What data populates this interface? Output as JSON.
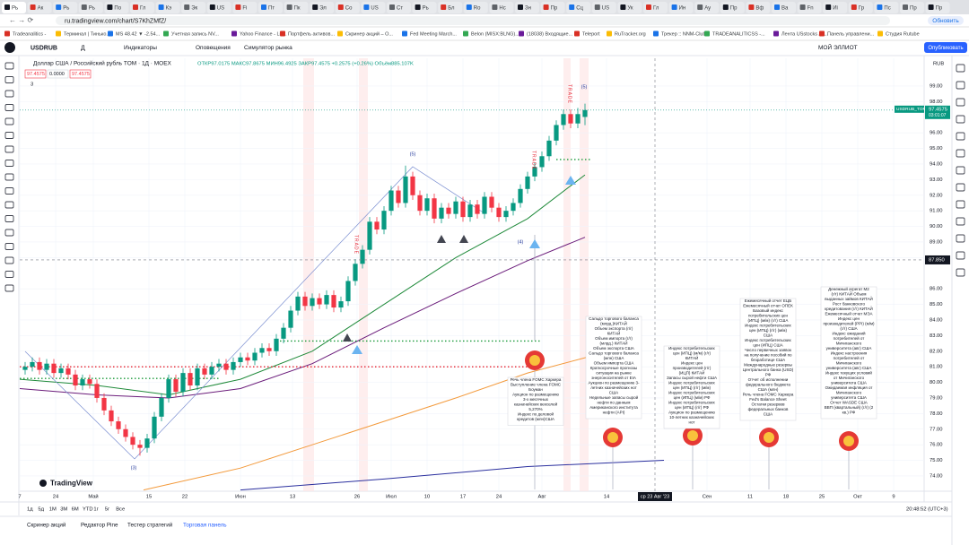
{
  "browser": {
    "tabs": [
      "Рь",
      "Ак",
      "Рь",
      "Рь",
      "По",
      "Гл",
      "Кэ",
      "Эк",
      "US",
      "Fi",
      "Пт",
      "Пк",
      "Эл",
      "Со",
      "US",
      "Ст",
      "Рь",
      "Бл",
      "Ro",
      "Нс",
      "Зн",
      "Пр",
      "Сц",
      "US",
      "Ук",
      "Гл",
      "Ин",
      "Ау",
      "Пр",
      "Вф",
      "Ва",
      "Fn",
      "Иі",
      "Гр",
      "Пс",
      "Пр",
      "Пр"
    ],
    "url": "ru.tradingview.com/chart/S7KhZMfZ/",
    "update_button": "Обновить",
    "bookmarks": [
      "Tradeanalitics -",
      "Терминал | Тинько...",
      "MS 48.42 ▼ -2.54...",
      "Учетная запись NV...",
      "Yahoo Finance - Liv...",
      "Портфель активов...",
      "Скринер акций – О...",
      "Fed Meeting March...",
      "Belon (MISX:BLNG)...",
      "(18038) Входящие...",
      "Teleport",
      "RuTracker.org",
      "Трекер :: NNM-Club",
      "TRADEANALITICSS -...",
      "Лента USstocks Ак...",
      "Панель управлени...",
      "Студия Rutube"
    ]
  },
  "toolbar": {
    "symbol": "USDRUB",
    "interval": "Д",
    "indicators": "Индикаторы",
    "alerts": "Оповещения",
    "replay": "Симулятор рынка",
    "layout_name": "МОЙ ЭЛЛИОТ",
    "publish": "Опубликовать"
  },
  "chart_data": {
    "type": "candlestick",
    "title": "Доллар США / Российский рубль TOM · 1Д · MOEX",
    "ohlc_text": "ОТКР97.0175 МАКС97.8675 МИН96.4925 ЗАКР97.4575 +0.2575 (+0.26%) Объём885.107K",
    "price_boxes": [
      "97.4575",
      "0.0000",
      "97.4575"
    ],
    "indicator_count": "3",
    "currency": "RUB",
    "up_color": "#089981",
    "down_color": "#f23645",
    "grid": true,
    "ylim": [
      73.02,
      100.78
    ],
    "yticks": [
      {
        "value": 74,
        "label": "74.00"
      },
      {
        "value": 75,
        "label": "75.00"
      },
      {
        "value": 76,
        "label": "76.00"
      },
      {
        "value": 77,
        "label": "77.00"
      },
      {
        "value": 78,
        "label": "78.00"
      },
      {
        "value": 79,
        "label": "79.00"
      },
      {
        "value": 80,
        "label": "80.00"
      },
      {
        "value": 81,
        "label": "81.00"
      },
      {
        "value": 82,
        "label": "82.00"
      },
      {
        "value": 83,
        "label": "83.00"
      },
      {
        "value": 84,
        "label": "84.00"
      },
      {
        "value": 85,
        "label": "85.00"
      },
      {
        "value": 86,
        "label": "86.00"
      },
      {
        "value": 88,
        "label": "88.00"
      },
      {
        "value": 89,
        "label": "89.00"
      },
      {
        "value": 90,
        "label": "90.00"
      },
      {
        "value": 91,
        "label": "91.00"
      },
      {
        "value": 92,
        "label": "92.00"
      },
      {
        "value": 93,
        "label": "93.00"
      },
      {
        "value": 94,
        "label": "94.00"
      },
      {
        "value": 95,
        "label": "95.00"
      },
      {
        "value": 96,
        "label": "96.00"
      },
      {
        "value": 98,
        "label": "98.00"
      },
      {
        "value": 99,
        "label": "99.00"
      }
    ],
    "xlim": [
      -0.75,
      125.25
    ],
    "xticks": [
      {
        "value": -0.75,
        "label": "7"
      },
      {
        "value": 4.25,
        "label": "24"
      },
      {
        "value": 9.5,
        "label": "Май"
      },
      {
        "value": 17.25,
        "label": "15"
      },
      {
        "value": 22.25,
        "label": "22"
      },
      {
        "value": 30,
        "label": "Июн"
      },
      {
        "value": 37.25,
        "label": "13"
      },
      {
        "value": 46.25,
        "label": "26"
      },
      {
        "value": 51,
        "label": "Июл"
      },
      {
        "value": 56,
        "label": "10"
      },
      {
        "value": 61,
        "label": "17"
      },
      {
        "value": 66,
        "label": "24"
      },
      {
        "value": 72,
        "label": "Авг"
      },
      {
        "value": 81,
        "label": "14"
      },
      {
        "value": 95,
        "label": "Сен"
      },
      {
        "value": 101,
        "label": "11"
      },
      {
        "value": 106,
        "label": "18"
      },
      {
        "value": 111,
        "label": "25"
      },
      {
        "value": 116,
        "label": "Окт"
      },
      {
        "value": 121,
        "label": "9"
      }
    ],
    "candles": [
      [
        80.8,
        81.3,
        80.5,
        81.0
      ],
      [
        81.0,
        81.6,
        80.7,
        81.3
      ],
      [
        81.3,
        81.6,
        80.5,
        80.8
      ],
      [
        80.8,
        81.5,
        80.5,
        81.2
      ],
      [
        81.2,
        81.5,
        80.3,
        80.6
      ],
      [
        80.6,
        81.2,
        80.3,
        80.9
      ],
      [
        80.9,
        81.2,
        80.2,
        80.5
      ],
      [
        80.5,
        80.8,
        79.5,
        79.8
      ],
      [
        79.8,
        80.5,
        79.5,
        80.2
      ],
      [
        80.2,
        80.5,
        79.6,
        79.9
      ],
      [
        79.9,
        80.2,
        78.7,
        79.0
      ],
      [
        79.0,
        79.3,
        77.9,
        78.2
      ],
      [
        78.2,
        78.5,
        77.2,
        77.5
      ],
      [
        77.5,
        77.8,
        76.7,
        77.0
      ],
      [
        77.0,
        77.3,
        76.2,
        76.5
      ],
      [
        76.5,
        76.8,
        75.7,
        76.0
      ],
      [
        76.0,
        76.3,
        75.3,
        75.8
      ],
      [
        75.8,
        76.7,
        75.5,
        76.4
      ],
      [
        76.4,
        78.1,
        76.1,
        77.8
      ],
      [
        77.8,
        79.3,
        77.5,
        79.0
      ],
      [
        79.0,
        80.5,
        78.7,
        80.2
      ],
      [
        80.2,
        80.5,
        79.1,
        79.4
      ],
      [
        79.4,
        80.9,
        79.1,
        80.6
      ],
      [
        80.6,
        80.9,
        79.5,
        79.8
      ],
      [
        79.8,
        81.2,
        79.5,
        80.9
      ],
      [
        80.9,
        81.2,
        80.2,
        80.5
      ],
      [
        80.5,
        81.3,
        80.2,
        81.0
      ],
      [
        81.0,
        81.5,
        80.7,
        81.2
      ],
      [
        81.2,
        81.5,
        80.5,
        80.8
      ],
      [
        80.8,
        81.6,
        80.5,
        81.3
      ],
      [
        81.3,
        81.9,
        81.0,
        81.6
      ],
      [
        81.6,
        81.9,
        81.1,
        81.4
      ],
      [
        81.4,
        82.2,
        81.1,
        81.9
      ],
      [
        81.9,
        82.5,
        81.6,
        82.2
      ],
      [
        82.2,
        82.5,
        81.7,
        82.0
      ],
      [
        82.0,
        83.1,
        81.7,
        82.8
      ],
      [
        82.8,
        83.8,
        82.5,
        83.5
      ],
      [
        83.5,
        84.9,
        83.2,
        84.6
      ],
      [
        84.6,
        85.8,
        84.3,
        85.5
      ],
      [
        85.5,
        85.8,
        84.6,
        84.9
      ],
      [
        84.9,
        85.7,
        84.6,
        85.4
      ],
      [
        85.4,
        85.7,
        84.7,
        85.0
      ],
      [
        85.0,
        85.9,
        84.7,
        85.6
      ],
      [
        85.6,
        85.9,
        84.5,
        84.8
      ],
      [
        84.8,
        85.5,
        84.5,
        85.2
      ],
      [
        85.2,
        86.8,
        84.9,
        86.5
      ],
      [
        86.5,
        87.9,
        86.2,
        87.6
      ],
      [
        87.6,
        88.8,
        87.3,
        88.5
      ],
      [
        88.5,
        90.6,
        88.2,
        90.3
      ],
      [
        90.3,
        90.6,
        89.5,
        89.8
      ],
      [
        89.8,
        91.3,
        89.5,
        91.0
      ],
      [
        91.0,
        92.6,
        90.7,
        92.3
      ],
      [
        92.3,
        92.6,
        91.2,
        91.5
      ],
      [
        91.5,
        93.9,
        91.2,
        93.2
      ],
      [
        93.2,
        93.5,
        91.7,
        92.0
      ],
      [
        92.0,
        92.3,
        90.7,
        91.0
      ],
      [
        91.0,
        92.1,
        90.7,
        91.8
      ],
      [
        91.8,
        92.1,
        90.2,
        90.5
      ],
      [
        90.5,
        91.5,
        90.2,
        91.2
      ],
      [
        91.2,
        91.5,
        90.5,
        90.8
      ],
      [
        90.8,
        91.9,
        90.5,
        91.6
      ],
      [
        91.6,
        91.9,
        90.3,
        90.6
      ],
      [
        90.6,
        91.7,
        90.3,
        91.4
      ],
      [
        91.4,
        91.7,
        90.5,
        90.8
      ],
      [
        90.8,
        92.2,
        90.5,
        91.9
      ],
      [
        91.9,
        92.2,
        90.9,
        91.2
      ],
      [
        91.2,
        91.5,
        90.3,
        90.6
      ],
      [
        90.6,
        91.3,
        90.3,
        91.0
      ],
      [
        91.0,
        91.8,
        90.7,
        91.5
      ],
      [
        91.5,
        92.7,
        91.2,
        92.4
      ],
      [
        92.4,
        93.5,
        92.1,
        93.2
      ],
      [
        93.2,
        94.1,
        92.9,
        93.8
      ],
      [
        93.8,
        94.8,
        93.5,
        94.5
      ],
      [
        94.5,
        95.8,
        94.2,
        95.5
      ],
      [
        95.5,
        96.8,
        95.2,
        96.5
      ],
      [
        96.5,
        97.5,
        96.2,
        97.2
      ],
      [
        97.2,
        97.5,
        96.3,
        96.6
      ],
      [
        96.6,
        97.6,
        96.3,
        97.2
      ],
      [
        97.0175,
        97.8675,
        96.4925,
        97.4575
      ]
    ],
    "moving_averages": [
      {
        "color": "#1f8a3a",
        "x": [
          -0.75,
          10,
          20,
          30,
          40,
          50,
          60,
          70,
          78
        ],
        "values": [
          80.2,
          79.8,
          79.2,
          80.2,
          82.0,
          85.0,
          88.0,
          90.5,
          93.3
        ]
      },
      {
        "color": "#6a1b7a",
        "x": [
          -0.75,
          10,
          20,
          30,
          40,
          50,
          60,
          70,
          78
        ],
        "values": [
          79.6,
          79.2,
          79.0,
          79.6,
          81.2,
          83.5,
          85.7,
          87.8,
          89.3
        ]
      },
      {
        "color": "#f39a3c",
        "x": [
          16.5,
          30,
          40,
          50,
          60,
          70,
          79
        ],
        "values": [
          73.1,
          74.5,
          76.0,
          77.5,
          79.0,
          80.6,
          81.7
        ]
      },
      {
        "color": "#2a2f9e",
        "x": [
          30,
          50,
          70,
          89
        ],
        "values": [
          73.1,
          73.8,
          74.6,
          75.0
        ]
      }
    ],
    "levels": [
      {
        "value": 81.0,
        "color": "#e5202e",
        "x": [
          -0.75,
          72
        ]
      },
      {
        "value": 80.25,
        "color": "#1a9a3a",
        "x": [
          -0.75,
          27
        ]
      },
      {
        "value": 82.65,
        "color": "#1a9a3a",
        "x": [
          35,
          72
        ]
      },
      {
        "value": 94.29,
        "color": "#1a9a3a",
        "x": [
          74,
          79
        ]
      }
    ],
    "wave_labels": [
      "(3)",
      "(5)",
      "(4)",
      "(5)"
    ],
    "signal_labels": [
      "TRADE",
      "TRADE",
      "TRADE"
    ],
    "crosshair": {
      "x": 87.75,
      "x_label": "ср 23 Авг '23",
      "y": 87.85,
      "y_label": "87.850"
    },
    "last_price": {
      "value": 97.4575,
      "symbol": "USDRUB_TOM",
      "price": "97.4575",
      "countdown": "03:01:07"
    },
    "annotations": [
      [
        "Сальдо торгового баланса",
        "(млрд.)КИТАЙ",
        "Объем экспорта (г/г)",
        "КИТАЙ",
        "Объем импорта (г/г)",
        "(млрд.) КИТАЙ",
        "Объем экспорта США",
        "Сальдо торгового баланса",
        "(млн) США",
        "Объем импорта США",
        "Краткосрочные прогнозы",
        "ситуации на рынке",
        "энергоносителей от EIA",
        "Аукцион по размещению 3-",
        "летних казначейских нот",
        "США",
        "Недельные запасы сырой",
        "нефти по данным",
        "Американского института",
        "нефти (API)"
      ],
      [
        "Речь члена FOMC Харкера",
        "Выступление члена FOMC",
        "Боуман",
        "Аукцион по размещению",
        "3-х месячных",
        "казначейских векселей",
        "5,270%",
        "Индекс по деловой",
        "кредитов (млн)США"
      ],
      [
        "Индекс потребительских",
        "цен (ИПЦ) (м/м) (г/г)",
        "КИТАЙ",
        "Индекс цен",
        "производителей (г/г)",
        "(ИЦП) КИТАЙ",
        "Запасы сырой нефти США",
        "Индекс потребительских",
        "цен (ИПЦ) (г/г) (м/м)",
        "Индекс потребительских",
        "цен (ИПЦ) (м/м) РФ",
        "Индекс потребительских",
        "цен (ИПЦ) (г/г) РФ",
        "Аукцион по размещению",
        "10-летних казначейских",
        "нот"
      ],
      [
        "Ежемесячный отчет ЕЦБ",
        "Ежемесячный отчет ОПЕК",
        "Базовый индекс",
        "потребительских цен",
        "(ИПЦ) (м/м) (г/г) США",
        "Индекс потребительских",
        "цен (ИПЦ) (г/г) (м/м)",
        "США",
        "Индекс потребительских",
        "цен (ИПЦ) США",
        "Число первичных заявок",
        "на получение пособий по",
        "безработице США",
        "Международные резервы",
        "Центрального банка (USD)",
        "РФ",
        "Отчет об исполнении",
        "федерального бюджета",
        "США (млн)",
        "Речь члена FOMC Харкера",
        "Fed's Balance Sheet",
        "Остатки резервов",
        "федеральных банков",
        "США"
      ],
      [
        "Денежный агрегат M2",
        "(г/г) КИТАЙ    Объем",
        "выданных займов КИТАЙ",
        "Рост банковского",
        "кредитования (г/г) КИТАЙ",
        "Ежемесячный отчет МЭА",
        "Индекс цен",
        "производителей (PPI) (м/м)",
        "(г/г) США",
        "Индекс ожиданий",
        "потребителей от",
        "Мичиганского",
        "университета (авг) США",
        "Индекс настроения",
        "потребителей от",
        "Мичиганского",
        "университета (авг) США",
        "Индекс текущих условий",
        "от Мичиганского",
        "университета США",
        "Ожидаемая инфляция от",
        "Мичиганского",
        "университета США",
        "Отчет WASDE  США",
        "ВВП (квартальный) (г/г) (2",
        "кв.) РФ"
      ]
    ],
    "brand": "TradingView"
  },
  "bottom": {
    "ranges": [
      "1д",
      "5д",
      "1М",
      "3М",
      "6М",
      "YTD",
      "1г",
      "5г",
      "Все"
    ],
    "clock": "20:48:52 (UTC+3)",
    "panels": [
      "Скринер акций",
      "Редактор Pine",
      "Тестер стратегий",
      "Торговая панель"
    ]
  }
}
